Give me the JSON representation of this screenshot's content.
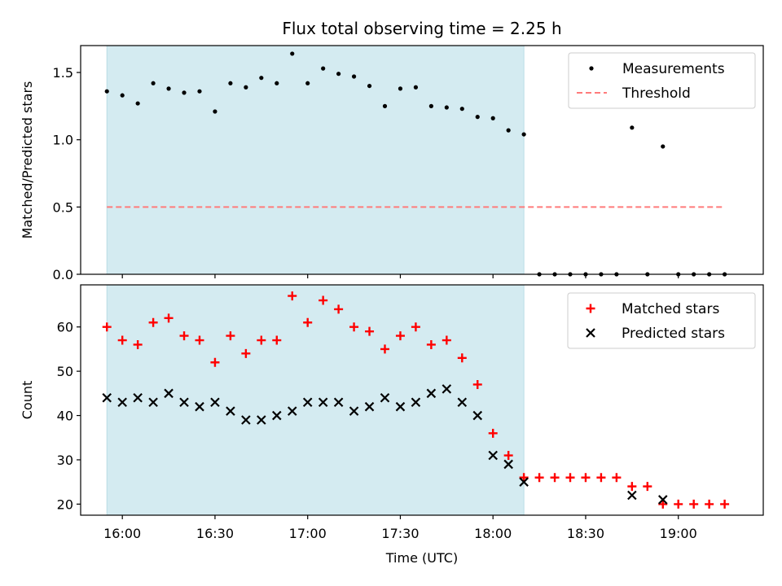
{
  "chart_data": {
    "type": "scatter",
    "title": "Flux total observing time = 2.25 h",
    "xlabel": "Time (UTC)",
    "x_ticks": [
      "16:00",
      "16:30",
      "17:00",
      "17:30",
      "18:00",
      "18:30",
      "19:00"
    ],
    "x_tick_minutes": [
      960,
      990,
      1020,
      1050,
      1080,
      1110,
      1140
    ],
    "xlim_minutes": [
      946.5,
      1167.5
    ],
    "shaded_interval_minutes": [
      955,
      1090
    ],
    "shade_color": "#d4ebf1",
    "panels": [
      {
        "ylabel": "Matched/Predicted stars",
        "ylim": [
          0,
          1.7
        ],
        "y_ticks": [
          0.0,
          0.5,
          1.0,
          1.5
        ],
        "y_tick_labels": [
          "0.0",
          "0.5",
          "1.0",
          "1.5"
        ],
        "legend": {
          "position": "upper right"
        },
        "series": [
          {
            "name": "Measurements",
            "marker": "dot",
            "color": "#000000",
            "points": [
              [
                955,
                1.36
              ],
              [
                960,
                1.33
              ],
              [
                965,
                1.27
              ],
              [
                970,
                1.42
              ],
              [
                975,
                1.38
              ],
              [
                980,
                1.35
              ],
              [
                985,
                1.36
              ],
              [
                990,
                1.21
              ],
              [
                995,
                1.42
              ],
              [
                1000,
                1.39
              ],
              [
                1005,
                1.46
              ],
              [
                1010,
                1.42
              ],
              [
                1015,
                1.64
              ],
              [
                1020,
                1.42
              ],
              [
                1025,
                1.53
              ],
              [
                1030,
                1.49
              ],
              [
                1035,
                1.47
              ],
              [
                1040,
                1.4
              ],
              [
                1045,
                1.25
              ],
              [
                1050,
                1.38
              ],
              [
                1055,
                1.39
              ],
              [
                1060,
                1.25
              ],
              [
                1065,
                1.24
              ],
              [
                1070,
                1.23
              ],
              [
                1075,
                1.17
              ],
              [
                1080,
                1.16
              ],
              [
                1085,
                1.07
              ],
              [
                1090,
                1.04
              ],
              [
                1095,
                0.0
              ],
              [
                1100,
                0.0
              ],
              [
                1105,
                0.0
              ],
              [
                1110,
                0.0
              ],
              [
                1115,
                0.0
              ],
              [
                1120,
                0.0
              ],
              [
                1125,
                1.09
              ],
              [
                1130,
                0.0
              ],
              [
                1135,
                0.95
              ],
              [
                1140,
                0.0
              ],
              [
                1145,
                0.0
              ],
              [
                1150,
                0.0
              ],
              [
                1155,
                0.0
              ]
            ]
          },
          {
            "name": "Threshold",
            "line_style": "dashed",
            "color": "#ff7b7b",
            "points": [
              [
                955,
                0.5
              ],
              [
                1155,
                0.5
              ]
            ]
          }
        ]
      },
      {
        "ylabel": "Count",
        "ylim": [
          17.5,
          69.5
        ],
        "y_ticks": [
          20,
          30,
          40,
          50,
          60
        ],
        "y_tick_labels": [
          "20",
          "30",
          "40",
          "50",
          "60"
        ],
        "legend": {
          "position": "upper right"
        },
        "series": [
          {
            "name": "Matched stars",
            "marker": "plus",
            "color": "#ff0000",
            "points": [
              [
                955,
                60
              ],
              [
                960,
                57
              ],
              [
                965,
                56
              ],
              [
                970,
                61
              ],
              [
                975,
                62
              ],
              [
                980,
                58
              ],
              [
                985,
                57
              ],
              [
                990,
                52
              ],
              [
                995,
                58
              ],
              [
                1000,
                54
              ],
              [
                1005,
                57
              ],
              [
                1010,
                57
              ],
              [
                1015,
                67
              ],
              [
                1020,
                61
              ],
              [
                1025,
                66
              ],
              [
                1030,
                64
              ],
              [
                1035,
                60
              ],
              [
                1040,
                59
              ],
              [
                1045,
                55
              ],
              [
                1050,
                58
              ],
              [
                1055,
                60
              ],
              [
                1060,
                56
              ],
              [
                1065,
                57
              ],
              [
                1070,
                53
              ],
              [
                1075,
                47
              ],
              [
                1080,
                36
              ],
              [
                1085,
                31
              ],
              [
                1090,
                26
              ],
              [
                1095,
                26
              ],
              [
                1100,
                26
              ],
              [
                1105,
                26
              ],
              [
                1110,
                26
              ],
              [
                1115,
                26
              ],
              [
                1120,
                26
              ],
              [
                1125,
                24
              ],
              [
                1130,
                24
              ],
              [
                1135,
                20
              ],
              [
                1140,
                20
              ],
              [
                1145,
                20
              ],
              [
                1150,
                20
              ],
              [
                1155,
                20
              ]
            ]
          },
          {
            "name": "Predicted stars",
            "marker": "x",
            "color": "#000000",
            "points": [
              [
                955,
                44
              ],
              [
                960,
                43
              ],
              [
                965,
                44
              ],
              [
                970,
                43
              ],
              [
                975,
                45
              ],
              [
                980,
                43
              ],
              [
                985,
                42
              ],
              [
                990,
                43
              ],
              [
                995,
                41
              ],
              [
                1000,
                39
              ],
              [
                1005,
                39
              ],
              [
                1010,
                40
              ],
              [
                1015,
                41
              ],
              [
                1020,
                43
              ],
              [
                1025,
                43
              ],
              [
                1030,
                43
              ],
              [
                1035,
                41
              ],
              [
                1040,
                42
              ],
              [
                1045,
                44
              ],
              [
                1050,
                42
              ],
              [
                1055,
                43
              ],
              [
                1060,
                45
              ],
              [
                1065,
                46
              ],
              [
                1070,
                43
              ],
              [
                1075,
                40
              ],
              [
                1080,
                31
              ],
              [
                1085,
                29
              ],
              [
                1090,
                25
              ],
              [
                1125,
                22
              ],
              [
                1135,
                21
              ]
            ]
          }
        ]
      }
    ]
  }
}
